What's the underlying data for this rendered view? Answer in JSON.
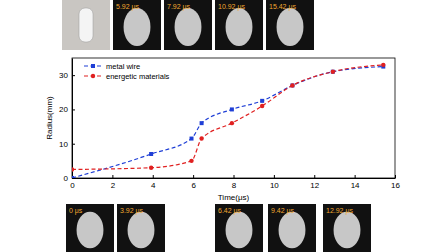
{
  "chart_data": {
    "type": "line",
    "x_label": "Time(μs)",
    "y_label": "Radius(mm)",
    "x": [
      0,
      3.92,
      5.92,
      6.42,
      7.92,
      9.42,
      10.92,
      12.92,
      15.42
    ],
    "series": [
      {
        "name": "metal wire",
        "color": "#1f3fd6",
        "marker": "square",
        "line_style": "dashed",
        "values": [
          0,
          7,
          11.5,
          16,
          20,
          22.5,
          27,
          31,
          32.5
        ]
      },
      {
        "name": "energetic materials",
        "color": "#e02020",
        "marker": "circle",
        "line_style": "dashed",
        "values": [
          2.5,
          3,
          5,
          11.5,
          16,
          21,
          27,
          31,
          33
        ]
      }
    ],
    "xlim": [
      0,
      16
    ],
    "xticks": [
      0,
      2,
      4,
      6,
      8,
      10,
      12,
      14,
      16
    ],
    "ylim": [
      0,
      35
    ],
    "yticks": [
      0,
      10,
      20,
      30
    ],
    "legend": "upper left"
  },
  "frames": {
    "top": [
      "5.92 μs",
      "7.92 μs",
      "10.92 μs",
      "15.42 μs"
    ],
    "bottom": [
      "0 μs",
      "3.92 μs",
      "6.42 μs",
      "9.42 μs",
      "12.92 μs"
    ]
  }
}
